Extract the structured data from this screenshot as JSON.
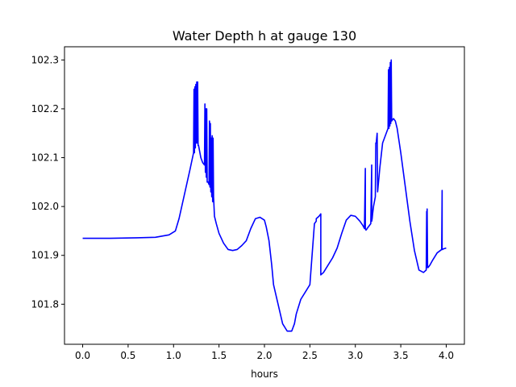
{
  "chart_data": {
    "type": "line",
    "title": "Water Depth h at gauge 130",
    "xlabel": "hours",
    "ylabel": "",
    "xlim": [
      -0.2,
      4.2
    ],
    "ylim": [
      101.718,
      102.327
    ],
    "xticks": [
      0.0,
      0.5,
      1.0,
      1.5,
      2.0,
      2.5,
      3.0,
      3.5,
      4.0
    ],
    "xtick_labels": [
      "0.0",
      "0.5",
      "1.0",
      "1.5",
      "2.0",
      "2.5",
      "3.0",
      "3.5",
      "4.0"
    ],
    "yticks": [
      101.8,
      101.9,
      102.0,
      102.1,
      102.2,
      102.3
    ],
    "ytick_labels": [
      "101.8",
      "101.9",
      "102.0",
      "102.1",
      "102.2",
      "102.3"
    ],
    "grid": false,
    "legend": "none",
    "series": [
      {
        "color": "#0000ff",
        "x": [
          0.0,
          0.3,
          0.6,
          0.8,
          0.95,
          1.02,
          1.06,
          1.12,
          1.18,
          1.22,
          1.225,
          1.23,
          1.235,
          1.24,
          1.245,
          1.25,
          1.255,
          1.26,
          1.265,
          1.27,
          1.275,
          1.28,
          1.3,
          1.32,
          1.34,
          1.345,
          1.35,
          1.355,
          1.36,
          1.365,
          1.37,
          1.38,
          1.39,
          1.395,
          1.4,
          1.405,
          1.41,
          1.415,
          1.42,
          1.425,
          1.43,
          1.435,
          1.44,
          1.445,
          1.45,
          1.47,
          1.5,
          1.55,
          1.6,
          1.65,
          1.7,
          1.75,
          1.8,
          1.85,
          1.9,
          1.95,
          2.0,
          2.02,
          2.05,
          2.08,
          2.1,
          2.15,
          2.2,
          2.25,
          2.3,
          2.33,
          2.35,
          2.4,
          2.45,
          2.5,
          2.55,
          2.57,
          2.57,
          2.6,
          2.62,
          2.62,
          2.65,
          2.7,
          2.75,
          2.8,
          2.85,
          2.9,
          2.95,
          3.0,
          3.05,
          3.08,
          3.1,
          3.11,
          3.11,
          3.115,
          3.12,
          3.13,
          3.15,
          3.17,
          3.18,
          3.18,
          3.185,
          3.19,
          3.2,
          3.22,
          3.225,
          3.23,
          3.24,
          3.245,
          3.25,
          3.26,
          3.27,
          3.3,
          3.34,
          3.36,
          3.365,
          3.37,
          3.375,
          3.38,
          3.385,
          3.39,
          3.395,
          3.4,
          3.41,
          3.42,
          3.44,
          3.46,
          3.5,
          3.55,
          3.6,
          3.65,
          3.7,
          3.75,
          3.78,
          3.785,
          3.785,
          3.79,
          3.795,
          3.8,
          3.82,
          3.85,
          3.9,
          3.95,
          3.955,
          3.955,
          3.96,
          3.965,
          4.0
        ],
        "y": [
          101.935,
          101.935,
          101.936,
          101.937,
          101.942,
          101.95,
          101.975,
          102.025,
          102.075,
          102.11,
          102.24,
          102.11,
          102.245,
          102.12,
          102.25,
          102.13,
          102.255,
          102.13,
          102.255,
          102.125,
          102.125,
          102.12,
          102.1,
          102.09,
          102.085,
          102.21,
          102.07,
          102.2,
          102.06,
          102.2,
          102.05,
          102.05,
          102.045,
          102.175,
          102.04,
          102.17,
          102.03,
          102.14,
          102.02,
          102.145,
          102.01,
          102.14,
          102.02,
          102.0,
          101.98,
          101.965,
          101.945,
          101.925,
          101.912,
          101.91,
          101.912,
          101.92,
          101.93,
          101.955,
          101.975,
          101.978,
          101.972,
          101.958,
          101.93,
          101.88,
          101.84,
          101.8,
          101.76,
          101.745,
          101.745,
          101.76,
          101.78,
          101.81,
          101.825,
          101.84,
          101.965,
          101.97,
          101.975,
          101.98,
          101.985,
          101.86,
          101.865,
          101.88,
          101.895,
          101.915,
          101.945,
          101.972,
          101.982,
          101.98,
          101.97,
          101.962,
          101.955,
          102.078,
          101.955,
          101.952,
          101.952,
          101.955,
          101.96,
          101.965,
          102.085,
          101.97,
          101.975,
          101.985,
          102.0,
          102.02,
          102.13,
          102.13,
          102.15,
          102.03,
          102.04,
          102.06,
          102.08,
          102.13,
          102.15,
          102.16,
          102.28,
          102.16,
          102.285,
          102.165,
          102.295,
          102.17,
          102.3,
          102.175,
          102.178,
          102.18,
          102.175,
          102.16,
          102.11,
          102.04,
          101.97,
          101.91,
          101.87,
          101.865,
          101.87,
          101.99,
          101.875,
          101.995,
          101.875,
          101.875,
          101.88,
          101.89,
          101.905,
          101.912,
          102.033,
          101.912,
          101.912,
          101.913,
          101.915
        ]
      }
    ]
  }
}
